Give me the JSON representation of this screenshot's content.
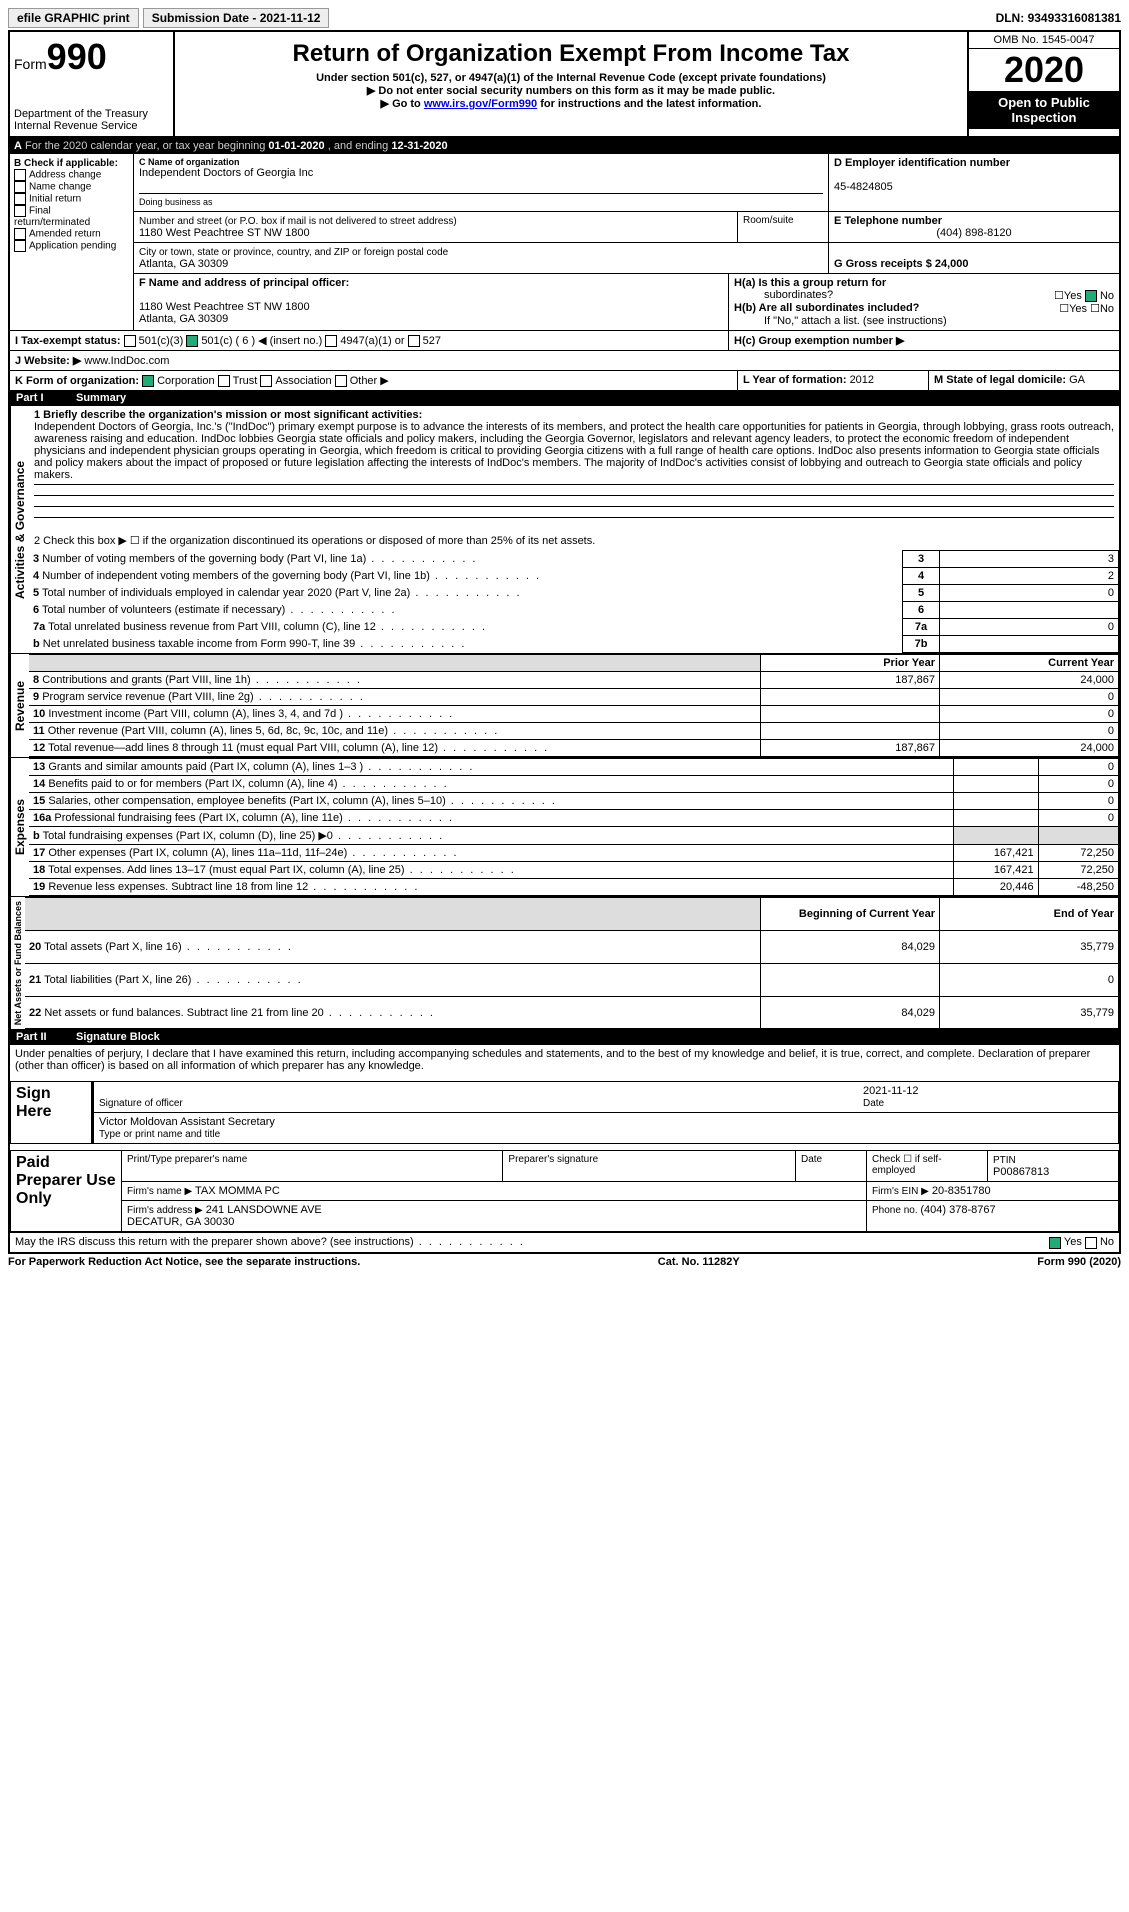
{
  "topbar": {
    "efile": "efile GRAPHIC print",
    "subdate_lbl": "Submission Date - ",
    "subdate": "2021-11-12",
    "dln_lbl": "DLN: ",
    "dln": "93493316081381"
  },
  "header": {
    "form_word": "Form",
    "form_num": "990",
    "dept": "Department of the Treasury",
    "irs": "Internal Revenue Service",
    "title": "Return of Organization Exempt From Income Tax",
    "sub": "Under section 501(c), 527, or 4947(a)(1) of the Internal Revenue Code (except private foundations)",
    "l1": "▶ Do not enter social security numbers on this form as it may be made public.",
    "l2a": "▶ Go to ",
    "l2link": "www.irs.gov/Form990",
    "l2b": " for instructions and the latest information.",
    "omb": "OMB No. 1545-0047",
    "year": "2020",
    "insp": "Open to Public Inspection"
  },
  "period": {
    "a": "A",
    "txt": " For the 2020 calendar year, or tax year beginning ",
    "b": "01-01-2020",
    "mid": " , and ending ",
    "e": "12-31-2020"
  },
  "B": {
    "hdr": "B Check if applicable:",
    "items": [
      "Address change",
      "Name change",
      "Initial return",
      "Final return/terminated",
      "Amended return",
      "Application pending"
    ]
  },
  "C": {
    "name_lbl": "C Name of organization",
    "name": "Independent Doctors of Georgia Inc",
    "dba_lbl": "Doing business as",
    "dba": "",
    "addr_lbl": "Number and street (or P.O. box if mail is not delivered to street address)",
    "addr": "1180 West Peachtree ST NW 1800",
    "room_lbl": "Room/suite",
    "city_lbl": "City or town, state or province, country, and ZIP or foreign postal code",
    "city": "Atlanta, GA  30309",
    "F_lbl": "F  Name and address of principal officer:",
    "F_addr": "1180 West Peachtree ST NW 1800\nAtlanta, GA  30309"
  },
  "D": {
    "ein_lbl": "D Employer identification number",
    "ein": "45-4824805",
    "tel_lbl": "E Telephone number",
    "tel": "(404) 898-8120",
    "G": "G Gross receipts $ 24,000"
  },
  "H": {
    "a": "H(a)  Is this a group return for",
    "a2": "subordinates?",
    "b": "H(b)  Are all subordinates included?",
    "b2": "If \"No,\" attach a list. (see instructions)",
    "c": "H(c)  Group exemption number ▶",
    "yes": "Yes",
    "no": "No"
  },
  "I": {
    "lbl": "I   Tax-exempt status:",
    "c3": "501(c)(3)",
    "c": "501(c) ( 6 ) ◀ (insert no.)",
    "a": "4947(a)(1) or",
    "s": "527"
  },
  "J": {
    "lbl": "J   Website: ▶",
    "val": "www.IndDoc.com"
  },
  "K": {
    "lbl": "K Form of organization:",
    "c": "Corporation",
    "t": "Trust",
    "a": "Association",
    "o": "Other ▶"
  },
  "L": {
    "lbl": "L Year of formation: ",
    "val": "2012"
  },
  "M": {
    "lbl": "M State of legal domicile: ",
    "val": "GA"
  },
  "part1": {
    "pn": "Part I",
    "t": "Summary"
  },
  "summary": {
    "q1": "1   Briefly describe the organization's mission or most significant activities:",
    "mission": "Independent Doctors of Georgia, Inc.'s (\"IndDoc\") primary exempt purpose is to advance the interests of its members, and protect the health care opportunities for patients in Georgia, through lobbying, grass roots outreach, awareness raising and education. IndDoc lobbies Georgia state officials and policy makers, including the Georgia Governor, legislators and relevant agency leaders, to protect the economic freedom of independent physicians and independent physician groups operating in Georgia, which freedom is critical to providing Georgia citizens with a full range of health care options. IndDoc also presents information to Georgia state officials and policy makers about the impact of proposed or future legislation affecting the interests of IndDoc's members. The majority of IndDoc's activities consist of lobbying and outreach to Georgia state officials and policy makers.",
    "q2": "2   Check this box ▶ ☐ if the organization discontinued its operations or disposed of more than 25% of its net assets.",
    "rows": [
      {
        "n": "3",
        "t": "Number of voting members of the governing body (Part VI, line 1a)",
        "box": "3",
        "v": "3"
      },
      {
        "n": "4",
        "t": "Number of independent voting members of the governing body (Part VI, line 1b)",
        "box": "4",
        "v": "2"
      },
      {
        "n": "5",
        "t": "Total number of individuals employed in calendar year 2020 (Part V, line 2a)",
        "box": "5",
        "v": "0"
      },
      {
        "n": "6",
        "t": "Total number of volunteers (estimate if necessary)",
        "box": "6",
        "v": ""
      },
      {
        "n": "7a",
        "t": "Total unrelated business revenue from Part VIII, column (C), line 12",
        "box": "7a",
        "v": "0"
      },
      {
        "n": "b",
        "t": "Net unrelated business taxable income from Form 990-T, line 39",
        "box": "7b",
        "v": ""
      }
    ]
  },
  "fin": {
    "hdr_prior": "Prior Year",
    "hdr_cur": "Current Year",
    "rev": [
      {
        "n": "8",
        "t": "Contributions and grants (Part VIII, line 1h)",
        "p": "187,867",
        "c": "24,000"
      },
      {
        "n": "9",
        "t": "Program service revenue (Part VIII, line 2g)",
        "p": "",
        "c": "0"
      },
      {
        "n": "10",
        "t": "Investment income (Part VIII, column (A), lines 3, 4, and 7d )",
        "p": "",
        "c": "0"
      },
      {
        "n": "11",
        "t": "Other revenue (Part VIII, column (A), lines 5, 6d, 8c, 9c, 10c, and 11e)",
        "p": "",
        "c": "0"
      },
      {
        "n": "12",
        "t": "Total revenue—add lines 8 through 11 (must equal Part VIII, column (A), line 12)",
        "p": "187,867",
        "c": "24,000"
      }
    ],
    "exp": [
      {
        "n": "13",
        "t": "Grants and similar amounts paid (Part IX, column (A), lines 1–3 )",
        "p": "",
        "c": "0"
      },
      {
        "n": "14",
        "t": "Benefits paid to or for members (Part IX, column (A), line 4)",
        "p": "",
        "c": "0"
      },
      {
        "n": "15",
        "t": "Salaries, other compensation, employee benefits (Part IX, column (A), lines 5–10)",
        "p": "",
        "c": "0"
      },
      {
        "n": "16a",
        "t": "Professional fundraising fees (Part IX, column (A), line 11e)",
        "p": "",
        "c": "0"
      },
      {
        "n": "b",
        "t": "Total fundraising expenses (Part IX, column (D), line 25) ▶0",
        "p": "shade",
        "c": "shade"
      },
      {
        "n": "17",
        "t": "Other expenses (Part IX, column (A), lines 11a–11d, 11f–24e)",
        "p": "167,421",
        "c": "72,250"
      },
      {
        "n": "18",
        "t": "Total expenses. Add lines 13–17 (must equal Part IX, column (A), line 25)",
        "p": "167,421",
        "c": "72,250"
      },
      {
        "n": "19",
        "t": "Revenue less expenses. Subtract line 18 from line 12",
        "p": "20,446",
        "c": "-48,250"
      }
    ],
    "hdr_beg": "Beginning of Current Year",
    "hdr_end": "End of Year",
    "net": [
      {
        "n": "20",
        "t": "Total assets (Part X, line 16)",
        "p": "84,029",
        "c": "35,779"
      },
      {
        "n": "21",
        "t": "Total liabilities (Part X, line 26)",
        "p": "",
        "c": "0"
      },
      {
        "n": "22",
        "t": "Net assets or fund balances. Subtract line 21 from line 20",
        "p": "84,029",
        "c": "35,779"
      }
    ],
    "vlab_act": "Activities & Governance",
    "vlab_rev": "Revenue",
    "vlab_exp": "Expenses",
    "vlab_net": "Net Assets or Fund Balances"
  },
  "part2": {
    "pn": "Part II",
    "t": "Signature Block",
    "decl": "Under penalties of perjury, I declare that I have examined this return, including accompanying schedules and statements, and to the best of my knowledge and belief, it is true, correct, and complete. Declaration of preparer (other than officer) is based on all information of which preparer has any knowledge.",
    "sign": "Sign Here",
    "sigoff": "Signature of officer",
    "date": "Date",
    "sigdate": "2021-11-12",
    "name": "Victor Moldovan  Assistant Secretary",
    "name_lbl": "Type or print name and title",
    "paid": "Paid Preparer Use Only",
    "pt": "Print/Type preparer's name",
    "ps": "Preparer's signature",
    "dt": "Date",
    "chkif": "Check ☐ if self-employed",
    "ptin_lbl": "PTIN",
    "ptin": "P00867813",
    "fn_lbl": "Firm's name    ▶",
    "fn": "TAX MOMMA PC",
    "fein_lbl": "Firm's EIN ▶",
    "fein": "20-8351780",
    "fa_lbl": "Firm's address ▶",
    "fa": "241 LANSDOWNE AVE\nDECATUR, GA  30030",
    "ph_lbl": "Phone no. ",
    "ph": "(404) 378-8767",
    "may": "May the IRS discuss this return with the preparer shown above? (see instructions)",
    "yes": "Yes",
    "no": "No"
  },
  "footer": {
    "l": "For Paperwork Reduction Act Notice, see the separate instructions.",
    "m": "Cat. No. 11282Y",
    "r": "Form 990 (2020)"
  }
}
